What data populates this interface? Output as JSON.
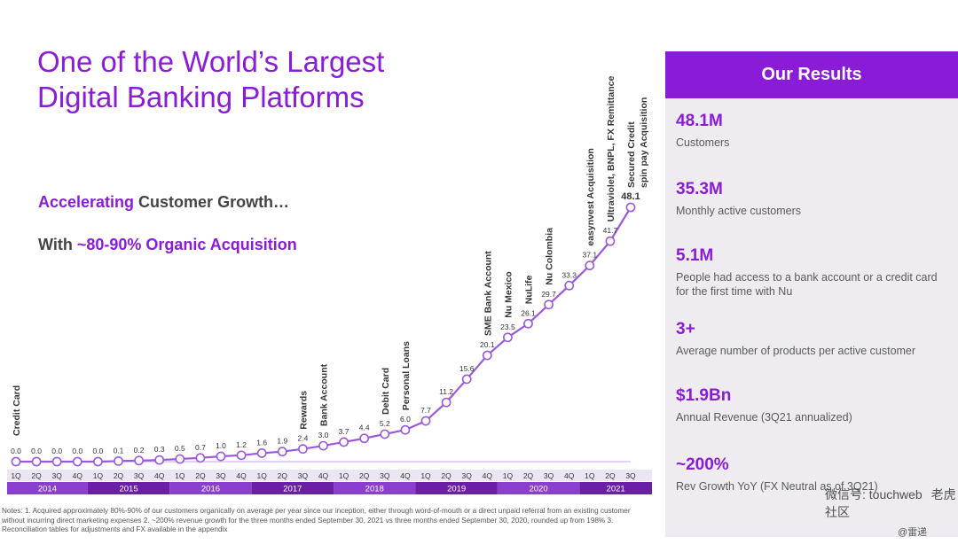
{
  "title_lines": [
    "One of the World’s Largest",
    "Digital Banking Platforms"
  ],
  "headline": {
    "accent": "Accelerating",
    "rest": " Customer Growth…"
  },
  "subheadline": {
    "prefix": "With ",
    "accent": "~80-90% Organic Acquisition"
  },
  "results": {
    "title": "Our Results",
    "items": [
      {
        "value": "48.1M",
        "label": "Customers"
      },
      {
        "value": "35.3M",
        "label": "Monthly active customers"
      },
      {
        "value": "5.1M",
        "label": "People had access to a bank account or a credit card for the first time with Nu"
      },
      {
        "value": "3+",
        "label": "Average number of products per active customer"
      },
      {
        "value": "$1.9Bn",
        "label": "Annual Revenue (3Q21 annualized)"
      },
      {
        "value": "~200%",
        "label": "Rev Growth YoY (FX Neutral as of 3Q21)"
      }
    ]
  },
  "notes": "Notes: 1. Acquired approximately 80%-90% of our customers organically on average per year since our inception, either through word-of-mouth or a direct unpaid referral from an existing customer without incurring direct marketing expenses 2. ~200% revenue growth for the three months ended September 30, 2021 vs three months ended September 30, 2020, rounded up from 198% 3. Reconciliation tables for adjustments and FX available in the appendix",
  "watermark": {
    "wechat": "微信号: touchweb",
    "community": "老虎社区",
    "handle": "@雷递"
  },
  "colors": {
    "accent": "#8a1bd6",
    "year_band_dark": "#6b1fa6",
    "year_band_light": "#8a3fd0"
  },
  "chart_data": {
    "type": "line",
    "title": "",
    "ylabel": "",
    "xlabel": "",
    "x": [
      "1Q",
      "2Q",
      "3Q",
      "4Q",
      "1Q",
      "2Q",
      "3Q",
      "4Q",
      "1Q",
      "2Q",
      "3Q",
      "4Q",
      "1Q",
      "2Q",
      "3Q",
      "4Q",
      "1Q",
      "2Q",
      "3Q",
      "4Q",
      "1Q",
      "2Q",
      "3Q",
      "4Q",
      "1Q",
      "2Q",
      "3Q",
      "4Q",
      "1Q",
      "2Q",
      "3Q"
    ],
    "years": [
      "2014",
      "2015",
      "2016",
      "2017",
      "2018",
      "2019",
      "2020",
      "2021"
    ],
    "values": [
      0.0,
      0.0,
      0.0,
      0.0,
      0.0,
      0.1,
      0.2,
      0.3,
      0.5,
      0.7,
      1.0,
      1.2,
      1.6,
      1.9,
      2.4,
      3.0,
      3.7,
      4.4,
      5.2,
      6.0,
      7.7,
      11.2,
      15.6,
      20.1,
      23.5,
      26.1,
      29.7,
      33.3,
      37.1,
      41.7,
      48.1
    ],
    "value_labels": [
      "0.0",
      "0.0",
      "0.0",
      "0.0",
      "0.0",
      "0.1",
      "0.2",
      "0.3",
      "0.5",
      "0.7",
      "1.0",
      "1.2",
      "1.6",
      "1.9",
      "2.4",
      "3.0",
      "3.7",
      "4.4",
      "5.2",
      "6.0",
      "7.7",
      "11.2",
      "15.6",
      "20.1",
      "23.5",
      "26.1",
      "29.7",
      "33.3",
      "37.1",
      "41.7",
      "48.1"
    ],
    "annotations": [
      {
        "index": 0,
        "text": "Credit Card"
      },
      {
        "index": 14,
        "text": "Rewards"
      },
      {
        "index": 15,
        "text": "Bank Account"
      },
      {
        "index": 18,
        "text": "Debit Card"
      },
      {
        "index": 19,
        "text": "Personal Loans"
      },
      {
        "index": 23,
        "text": "SME Bank Account"
      },
      {
        "index": 24,
        "text": "Nu Mexico"
      },
      {
        "index": 25,
        "text": "NuLife"
      },
      {
        "index": 26,
        "text": "Nu Colombia"
      },
      {
        "index": 28,
        "text": "easynvest Acquisition"
      },
      {
        "index": 29,
        "text": "Ultraviolet, BNPL, FX Remittance"
      },
      {
        "index": 30,
        "text": "Secured Credit"
      },
      {
        "index": 31,
        "text": "spin pay Acquisition"
      }
    ],
    "ylim": [
      0,
      48.1
    ]
  }
}
